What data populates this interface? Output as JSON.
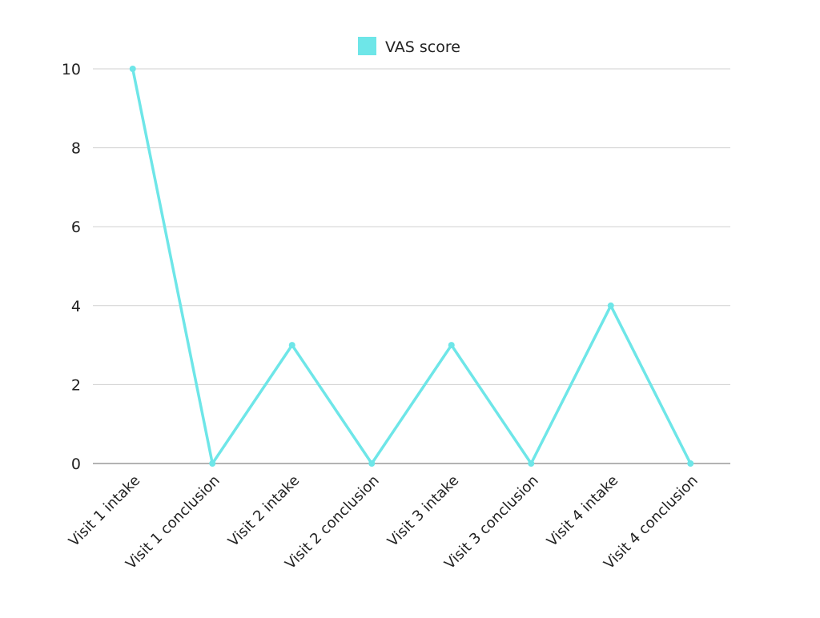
{
  "chart_data": {
    "type": "line",
    "title": "",
    "xlabel": "",
    "ylabel": "",
    "categories": [
      "Visit 1 intake",
      "Visit 1 conclusion",
      "Visit 2 intake",
      "Visit 2 conclusion",
      "Visit 3 intake",
      "Visit 3 conclusion",
      "Visit 4 intake",
      "Visit 4 conclusion"
    ],
    "series": [
      {
        "name": "VAS score",
        "values": [
          10,
          0,
          3,
          0,
          3,
          0,
          4,
          0
        ],
        "color": "#6ee6e8"
      }
    ],
    "ylim": [
      0,
      10
    ],
    "yticks": [
      0,
      2,
      4,
      6,
      8,
      10
    ],
    "grid": true,
    "legend": "top-center"
  }
}
